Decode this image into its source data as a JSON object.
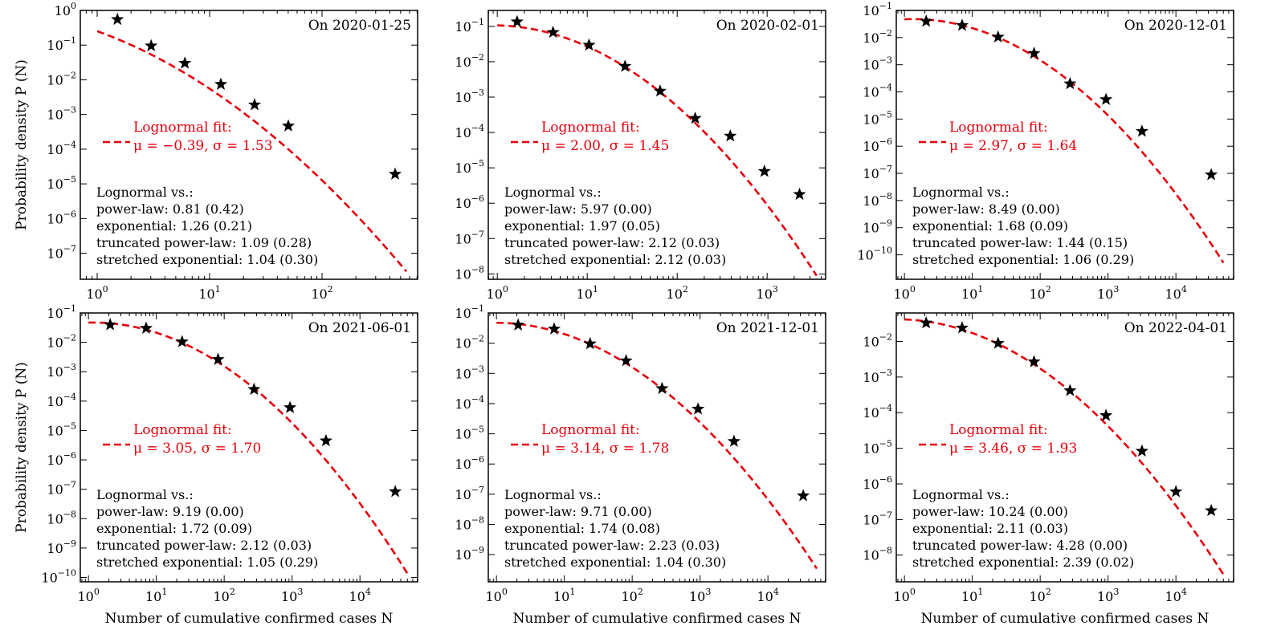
{
  "figure": {
    "ylabel": "Probability density P (N)",
    "xlabel": "Number of cumulative confirmed cases N",
    "fit_color": "#e8000b",
    "marker_color": "#000000"
  },
  "chart_data": [
    {
      "type": "scatter",
      "title": "On 2020-01-25",
      "x_scale": "log",
      "y_scale": "log",
      "xlim_exp": [
        -0.15,
        2.85
      ],
      "ylim_exp": [
        -7.75,
        0
      ],
      "x_tick_exps": [
        0,
        1,
        2
      ],
      "y_tick_exps": [
        0,
        -1,
        -2,
        -3,
        -4,
        -5,
        -6,
        -7
      ],
      "y_tick_labels": [
        "10^0",
        "10^-1",
        "10^-2",
        "10^-3",
        "10^-4",
        "10^-5",
        "10^-6",
        "10^-7"
      ],
      "x_tick_labels": [
        "10^0",
        "10^1",
        "10^2"
      ],
      "points": [
        {
          "log10_x": 0.18,
          "log10_y": -0.26
        },
        {
          "log10_x": 0.48,
          "log10_y": -1.02
        },
        {
          "log10_x": 0.78,
          "log10_y": -1.52
        },
        {
          "log10_x": 1.1,
          "log10_y": -2.13
        },
        {
          "log10_x": 1.4,
          "log10_y": -2.72
        },
        {
          "log10_x": 1.7,
          "log10_y": -3.33
        },
        {
          "log10_x": 2.65,
          "log10_y": -4.72
        }
      ],
      "fit": {
        "type": "lognormal",
        "mu": -0.39,
        "sigma": 1.53,
        "x_end_exp": 2.75
      },
      "legend": {
        "label": "Lognormal fit:",
        "params": "μ = −0.39,  σ = 1.53"
      },
      "comparisons": {
        "header": "Lognormal vs.:",
        "rows": [
          "power-law: 0.81 (0.42)",
          "exponential: 1.26 (0.21)",
          "truncated power-law: 1.09 (0.28)",
          "stretched exponential: 1.04 (0.30)"
        ]
      },
      "show_ylabel": true
    },
    {
      "type": "scatter",
      "title": "On 2020-02-01",
      "x_scale": "log",
      "y_scale": "log",
      "xlim_exp": [
        -0.1,
        3.65
      ],
      "ylim_exp": [
        -8.15,
        -0.55
      ],
      "x_tick_exps": [
        0,
        1,
        2,
        3
      ],
      "y_tick_exps": [
        -1,
        -2,
        -3,
        -4,
        -5,
        -6,
        -7,
        -8
      ],
      "y_tick_labels": [
        "10^-1",
        "10^-2",
        "10^-3",
        "10^-4",
        "10^-5",
        "10^-6",
        "10^-7",
        "10^-8"
      ],
      "x_tick_labels": [
        "10^0",
        "10^1",
        "10^2",
        "10^3"
      ],
      "points": [
        {
          "log10_x": 0.22,
          "log10_y": -0.87
        },
        {
          "log10_x": 0.62,
          "log10_y": -1.17
        },
        {
          "log10_x": 1.02,
          "log10_y": -1.53
        },
        {
          "log10_x": 1.42,
          "log10_y": -2.13
        },
        {
          "log10_x": 1.81,
          "log10_y": -2.83
        },
        {
          "log10_x": 2.2,
          "log10_y": -3.6
        },
        {
          "log10_x": 2.59,
          "log10_y": -4.1
        },
        {
          "log10_x": 2.97,
          "log10_y": -5.1
        },
        {
          "log10_x": 3.36,
          "log10_y": -5.75
        }
      ],
      "fit": {
        "type": "lognormal",
        "mu": 2.0,
        "sigma": 1.45,
        "x_end_exp": 3.55
      },
      "legend": {
        "label": "Lognormal fit:",
        "params": "μ = 2.00,  σ = 1.45"
      },
      "comparisons": {
        "header": "Lognormal vs.:",
        "rows": [
          "power-law: 5.97 (0.00)",
          "exponential: 1.97 (0.05)",
          "truncated power-law: 2.12 (0.03)",
          "stretched exponential: 2.12 (0.03)"
        ]
      },
      "show_ylabel": false
    },
    {
      "type": "scatter",
      "title": "On 2020-12-01",
      "x_scale": "log",
      "y_scale": "log",
      "xlim_exp": [
        -0.12,
        4.85
      ],
      "ylim_exp": [
        -10.9,
        -1
      ],
      "x_tick_exps": [
        0,
        1,
        2,
        3,
        4
      ],
      "y_tick_exps": [
        -1,
        -2,
        -3,
        -4,
        -5,
        -6,
        -7,
        -8,
        -9,
        -10
      ],
      "y_tick_labels": [
        "10^-1",
        "10^-2",
        "10^-3",
        "10^-4",
        "10^-5",
        "10^-6",
        "10^-7",
        "10^-8",
        "10^-9",
        "10^-10"
      ],
      "x_tick_labels": [
        "10^0",
        "10^1",
        "10^2",
        "10^3",
        "10^4"
      ],
      "points": [
        {
          "log10_x": 0.32,
          "log10_y": -1.4
        },
        {
          "log10_x": 0.85,
          "log10_y": -1.55
        },
        {
          "log10_x": 1.38,
          "log10_y": -1.98
        },
        {
          "log10_x": 1.91,
          "log10_y": -2.58
        },
        {
          "log10_x": 2.44,
          "log10_y": -3.7
        },
        {
          "log10_x": 2.97,
          "log10_y": -4.28
        },
        {
          "log10_x": 3.5,
          "log10_y": -5.45
        },
        {
          "log10_x": 4.52,
          "log10_y": -7.05
        }
      ],
      "fit": {
        "type": "lognormal",
        "mu": 2.97,
        "sigma": 1.64,
        "x_end_exp": 4.7
      },
      "legend": {
        "label": "Lognormal fit:",
        "params": "μ = 2.97,  σ = 1.64"
      },
      "comparisons": {
        "header": "Lognormal vs.:",
        "rows": [
          "power-law: 8.49 (0.00)",
          "exponential: 1.68 (0.09)",
          "truncated power-law: 1.44 (0.15)",
          "stretched exponential: 1.06 (0.29)"
        ]
      },
      "show_ylabel": false
    },
    {
      "type": "scatter",
      "title": "On 2021-06-01",
      "x_scale": "log",
      "y_scale": "log",
      "xlim_exp": [
        -0.12,
        4.85
      ],
      "ylim_exp": [
        -10.15,
        -1
      ],
      "x_tick_exps": [
        0,
        1,
        2,
        3,
        4
      ],
      "y_tick_exps": [
        -1,
        -2,
        -3,
        -4,
        -5,
        -6,
        -7,
        -8,
        -9,
        -10
      ],
      "y_tick_labels": [
        "10^-1",
        "10^-2",
        "10^-3",
        "10^-4",
        "10^-5",
        "10^-6",
        "10^-7",
        "10^-8",
        "10^-9",
        "10^-10"
      ],
      "x_tick_labels": [
        "10^0",
        "10^1",
        "10^2",
        "10^3",
        "10^4"
      ],
      "points": [
        {
          "log10_x": 0.32,
          "log10_y": -1.4
        },
        {
          "log10_x": 0.85,
          "log10_y": -1.52
        },
        {
          "log10_x": 1.38,
          "log10_y": -1.98
        },
        {
          "log10_x": 1.91,
          "log10_y": -2.58
        },
        {
          "log10_x": 2.44,
          "log10_y": -3.6
        },
        {
          "log10_x": 2.97,
          "log10_y": -4.22
        },
        {
          "log10_x": 3.5,
          "log10_y": -5.35
        },
        {
          "log10_x": 4.52,
          "log10_y": -7.08
        }
      ],
      "fit": {
        "type": "lognormal",
        "mu": 3.05,
        "sigma": 1.7,
        "x_end_exp": 4.72
      },
      "legend": {
        "label": "Lognormal fit:",
        "params": "μ = 3.05,  σ = 1.70"
      },
      "comparisons": {
        "header": "Lognormal vs.:",
        "rows": [
          "power-law: 9.19 (0.00)",
          "exponential: 1.72 (0.09)",
          "truncated power-law: 2.12 (0.03)",
          "stretched exponential: 1.05 (0.29)"
        ]
      },
      "show_ylabel": true
    },
    {
      "type": "scatter",
      "title": "On 2021-12-01",
      "x_scale": "log",
      "y_scale": "log",
      "xlim_exp": [
        -0.12,
        4.85
      ],
      "ylim_exp": [
        -9.9,
        -1
      ],
      "x_tick_exps": [
        0,
        1,
        2,
        3,
        4
      ],
      "y_tick_exps": [
        -1,
        -2,
        -3,
        -4,
        -5,
        -6,
        -7,
        -8,
        -9
      ],
      "y_tick_labels": [
        "10^-1",
        "10^-2",
        "10^-3",
        "10^-4",
        "10^-5",
        "10^-6",
        "10^-7",
        "10^-8",
        "10^-9"
      ],
      "x_tick_labels": [
        "10^0",
        "10^1",
        "10^2",
        "10^3",
        "10^4"
      ],
      "points": [
        {
          "log10_x": 0.32,
          "log10_y": -1.4
        },
        {
          "log10_x": 0.85,
          "log10_y": -1.53
        },
        {
          "log10_x": 1.38,
          "log10_y": -2.02
        },
        {
          "log10_x": 1.91,
          "log10_y": -2.58
        },
        {
          "log10_x": 2.44,
          "log10_y": -3.5
        },
        {
          "log10_x": 2.97,
          "log10_y": -4.18
        },
        {
          "log10_x": 3.5,
          "log10_y": -5.25
        },
        {
          "log10_x": 4.52,
          "log10_y": -7.05
        }
      ],
      "fit": {
        "type": "lognormal",
        "mu": 3.14,
        "sigma": 1.78,
        "x_end_exp": 4.72
      },
      "legend": {
        "label": "Lognormal fit:",
        "params": "μ = 3.14,  σ = 1.78"
      },
      "comparisons": {
        "header": "Lognormal vs.:",
        "rows": [
          "power-law: 9.71 (0.00)",
          "exponential: 1.74 (0.08)",
          "truncated power-law: 2.23 (0.03)",
          "stretched exponential: 1.04 (0.30)"
        ]
      },
      "show_ylabel": false
    },
    {
      "type": "scatter",
      "title": "On 2022-04-01",
      "x_scale": "log",
      "y_scale": "log",
      "xlim_exp": [
        -0.12,
        4.85
      ],
      "ylim_exp": [
        -8.75,
        -1.2
      ],
      "x_tick_exps": [
        0,
        1,
        2,
        3,
        4
      ],
      "y_tick_exps": [
        -2,
        -3,
        -4,
        -5,
        -6,
        -7,
        -8
      ],
      "y_tick_labels": [
        "10^-2",
        "10^-3",
        "10^-4",
        "10^-5",
        "10^-6",
        "10^-7",
        "10^-8"
      ],
      "x_tick_labels": [
        "10^0",
        "10^1",
        "10^2",
        "10^3",
        "10^4"
      ],
      "points": [
        {
          "log10_x": 0.32,
          "log10_y": -1.48
        },
        {
          "log10_x": 0.85,
          "log10_y": -1.62
        },
        {
          "log10_x": 1.38,
          "log10_y": -2.05
        },
        {
          "log10_x": 1.91,
          "log10_y": -2.57
        },
        {
          "log10_x": 2.44,
          "log10_y": -3.38
        },
        {
          "log10_x": 2.97,
          "log10_y": -4.08
        },
        {
          "log10_x": 3.5,
          "log10_y": -5.08
        },
        {
          "log10_x": 4.0,
          "log10_y": -6.22
        },
        {
          "log10_x": 4.52,
          "log10_y": -6.75
        }
      ],
      "fit": {
        "type": "lognormal",
        "mu": 3.46,
        "sigma": 1.93,
        "x_end_exp": 4.72
      },
      "legend": {
        "label": "Lognormal fit:",
        "params": "μ = 3.46,  σ = 1.93"
      },
      "comparisons": {
        "header": "Lognormal vs.:",
        "rows": [
          "power-law: 10.24 (0.00)",
          "exponential: 2.11 (0.03)",
          "truncated power-law: 4.28 (0.00)",
          "stretched exponential: 2.39 (0.02)"
        ]
      },
      "show_ylabel": false
    }
  ]
}
